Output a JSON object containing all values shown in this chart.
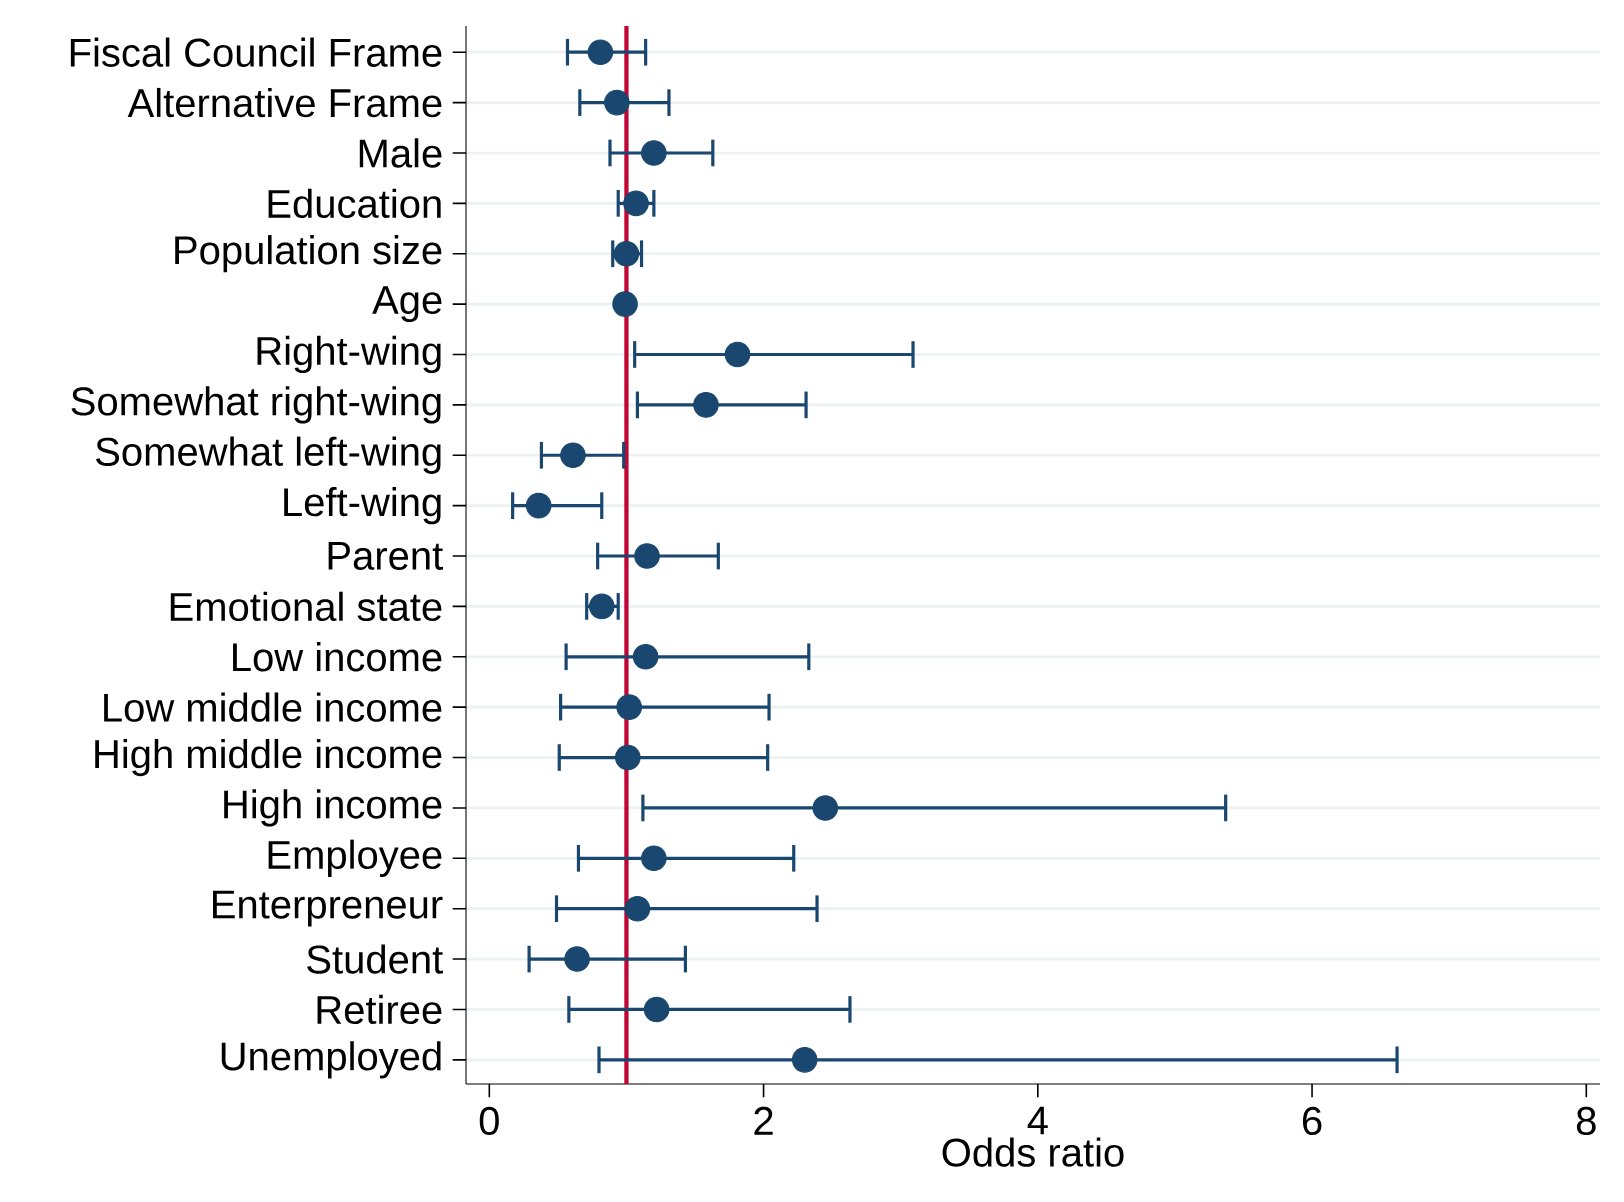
{
  "chart_data": {
    "type": "scatter",
    "orientation": "horizontal",
    "xlabel": "Odds ratio",
    "categories": [
      "Fiscal Council Frame",
      "Alternative Frame",
      "Male",
      "Education",
      "Population size",
      "Age",
      "Right-wing",
      "Somewhat right-wing",
      "Somewhat left-wing",
      "Left-wing",
      "Parent",
      "Emotional state",
      "Low income",
      "Low middle income",
      "High middle income",
      "High income",
      "Employee",
      "Enterpreneur",
      "Student",
      "Retiree",
      "Unemployed"
    ],
    "values": [
      0.81,
      0.93,
      1.2,
      1.07,
      1.0,
      0.99,
      1.81,
      1.58,
      0.61,
      0.36,
      1.15,
      0.82,
      1.14,
      1.02,
      1.01,
      2.45,
      1.2,
      1.08,
      0.64,
      1.22,
      2.3
    ],
    "errors": [
      [
        0.57,
        1.14
      ],
      [
        0.66,
        1.31
      ],
      [
        0.88,
        1.63
      ],
      [
        0.94,
        1.2
      ],
      [
        0.9,
        1.11
      ],
      null,
      [
        1.06,
        3.09
      ],
      [
        1.08,
        2.31
      ],
      [
        0.38,
        0.98
      ],
      [
        0.17,
        0.82
      ],
      [
        0.79,
        1.67
      ],
      [
        0.71,
        0.94
      ],
      [
        0.56,
        2.33
      ],
      [
        0.52,
        2.04
      ],
      [
        0.51,
        2.03
      ],
      [
        1.12,
        5.37
      ],
      [
        0.65,
        2.22
      ],
      [
        0.49,
        2.39
      ],
      [
        0.29,
        1.43
      ],
      [
        0.58,
        2.63
      ],
      [
        0.8,
        6.62
      ]
    ],
    "color": "#1a476f",
    "marker": "circle",
    "grid": "y",
    "xlim": [
      -0.17,
      8.1
    ],
    "xticks": [
      0,
      2,
      4,
      6,
      8
    ],
    "ref_lines": [
      {
        "axis": "x",
        "value": 1,
        "color": "#c10534"
      }
    ]
  }
}
